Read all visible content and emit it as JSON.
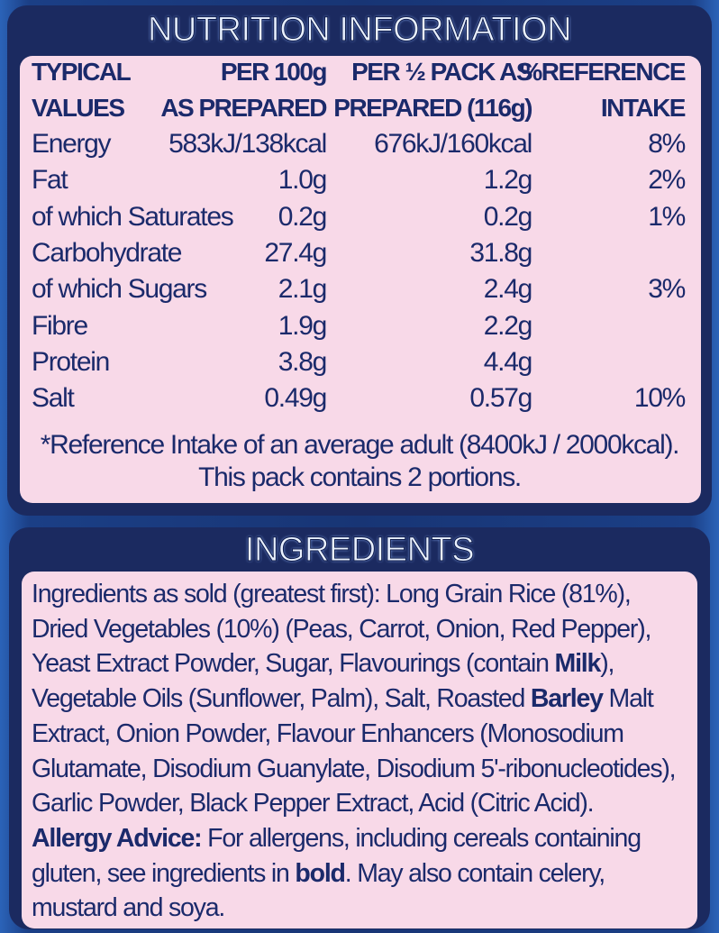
{
  "nutrition": {
    "title": "NUTRITION INFORMATION",
    "headers": [
      [
        "TYPICAL",
        "VALUES"
      ],
      [
        "PER 100g",
        "AS PREPARED"
      ],
      [
        "PER ½ PACK AS",
        "PREPARED (116g)"
      ],
      [
        "%REFERENCE",
        "INTAKE"
      ]
    ],
    "rows": [
      {
        "name": "Energy",
        "per100g": "583kJ/138kcal",
        "perHalfPack": "676kJ/160kcal",
        "ri": "8%"
      },
      {
        "name": "Fat",
        "per100g": "1.0g",
        "perHalfPack": "1.2g",
        "ri": "2%"
      },
      {
        "name": "of which Saturates",
        "per100g": "0.2g",
        "perHalfPack": "0.2g",
        "ri": "1%"
      },
      {
        "name": "Carbohydrate",
        "per100g": "27.4g",
        "perHalfPack": "31.8g"
      },
      {
        "name": "of which Sugars",
        "per100g": "2.1g",
        "perHalfPack": "2.4g",
        "ri": "3%"
      },
      {
        "name": "Fibre",
        "per100g": "1.9g",
        "perHalfPack": "2.2g"
      },
      {
        "name": "Protein",
        "per100g": "3.8g",
        "perHalfPack": "4.4g"
      },
      {
        "name": "Salt",
        "per100g": "0.49g",
        "perHalfPack": "0.57g",
        "ri": "10%"
      }
    ],
    "footnote": [
      "*Reference Intake of an average adult (8400kJ / 2000kcal).",
      "This pack contains 2 portions."
    ]
  },
  "ingredients": {
    "title": "INGREDIENTS",
    "lines": [
      [
        {
          "text": "Ingredients as sold (greatest first): Long Grain Rice (81%),"
        }
      ],
      [
        {
          "text": "Dried Vegetables (10%) (Peas, Carrot, Onion, Red Pepper),"
        }
      ],
      [
        {
          "text": "Yeast Extract Powder, Sugar, Flavourings (contain "
        },
        {
          "text": "Milk",
          "bold": true
        },
        {
          "text": "),"
        }
      ],
      [
        {
          "text": "Vegetable Oils (Sunflower, Palm), Salt, Roasted "
        },
        {
          "text": "Barley",
          "bold": true
        },
        {
          "text": " Malt"
        }
      ],
      [
        {
          "text": "Extract, Onion Powder, Flavour Enhancers (Monosodium"
        }
      ],
      [
        {
          "text": "Glutamate, Disodium Guanylate, Disodium 5'-ribonucleotides),"
        }
      ],
      [
        {
          "text": "Garlic Powder, Black Pepper Extract, Acid (Citric Acid)."
        }
      ],
      [
        {
          "text": "Allergy Advice:",
          "bold": true
        },
        {
          "text": " For allergens, including cereals containing"
        }
      ],
      [
        {
          "text": "gluten, see ingredients in "
        },
        {
          "text": "bold",
          "bold": true
        },
        {
          "text": ". May also contain celery,"
        }
      ],
      [
        {
          "text": "mustard and soya."
        }
      ]
    ]
  }
}
